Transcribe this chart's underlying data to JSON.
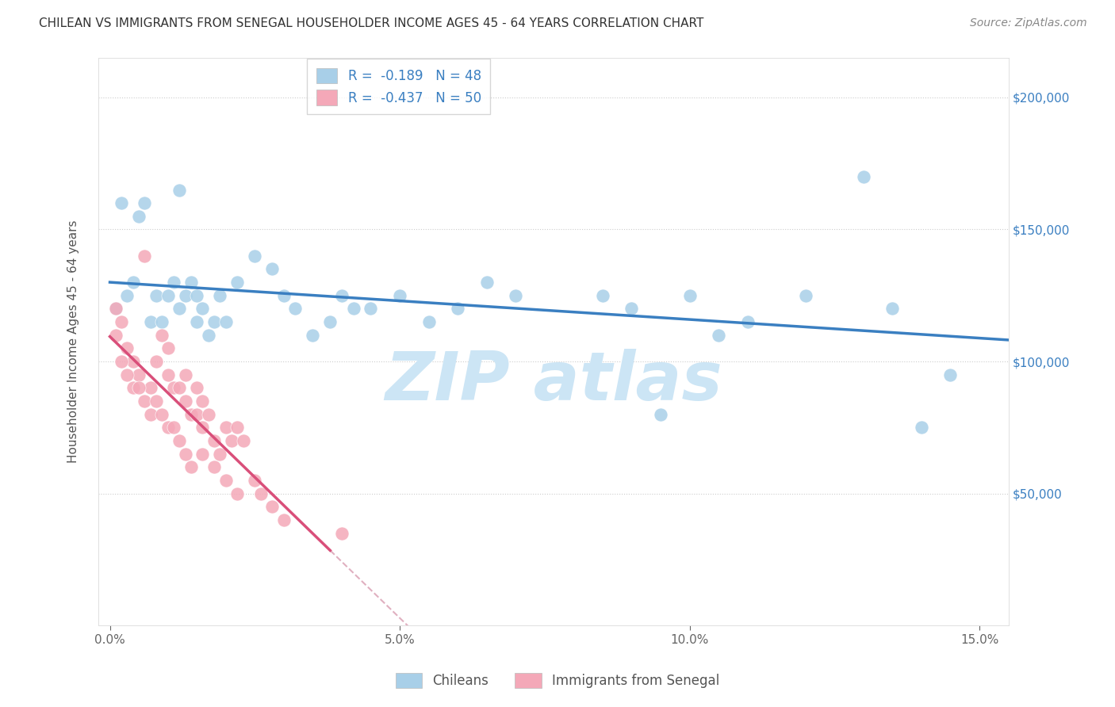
{
  "title": "CHILEAN VS IMMIGRANTS FROM SENEGAL HOUSEHOLDER INCOME AGES 45 - 64 YEARS CORRELATION CHART",
  "source": "Source: ZipAtlas.com",
  "ylabel": "Householder Income Ages 45 - 64 years",
  "xlim": [
    -0.002,
    0.155
  ],
  "ylim": [
    0,
    215000
  ],
  "xtick_positions": [
    0.0,
    0.05,
    0.1,
    0.15
  ],
  "xticklabels": [
    "0.0%",
    "5.0%",
    "10.0%",
    "15.0%"
  ],
  "ytick_positions": [
    50000,
    100000,
    150000,
    200000
  ],
  "ytick_labels": [
    "$50,000",
    "$100,000",
    "$150,000",
    "$200,000"
  ],
  "chilean_R": -0.189,
  "chilean_N": 48,
  "senegal_R": -0.437,
  "senegal_N": 50,
  "chilean_color": "#a8cfe8",
  "senegal_color": "#f4a8b8",
  "chilean_line_color": "#3a7fc1",
  "senegal_line_color": "#d94f7a",
  "senegal_dash_color": "#e0b0c0",
  "legend_label_chilean": "Chileans",
  "legend_label_senegal": "Immigrants from Senegal",
  "background_color": "#ffffff",
  "grid_color": "#cccccc",
  "watermark_color": "#cce5f5",
  "title_color": "#333333",
  "source_color": "#888888",
  "axis_label_color": "#555555",
  "yaxis_tick_color": "#3a7fc1",
  "legend_text_color": "#3a7fc1",
  "chilean_scatter_x": [
    0.001,
    0.002,
    0.003,
    0.004,
    0.005,
    0.006,
    0.007,
    0.008,
    0.009,
    0.01,
    0.011,
    0.012,
    0.012,
    0.013,
    0.014,
    0.015,
    0.015,
    0.016,
    0.017,
    0.018,
    0.019,
    0.02,
    0.022,
    0.025,
    0.028,
    0.03,
    0.032,
    0.035,
    0.038,
    0.04,
    0.042,
    0.045,
    0.05,
    0.055,
    0.06,
    0.065,
    0.07,
    0.085,
    0.09,
    0.095,
    0.1,
    0.105,
    0.11,
    0.12,
    0.13,
    0.135,
    0.14,
    0.145
  ],
  "chilean_scatter_y": [
    120000,
    160000,
    125000,
    130000,
    155000,
    160000,
    115000,
    125000,
    115000,
    125000,
    130000,
    120000,
    165000,
    125000,
    130000,
    125000,
    115000,
    120000,
    110000,
    115000,
    125000,
    115000,
    130000,
    140000,
    135000,
    125000,
    120000,
    110000,
    115000,
    125000,
    120000,
    120000,
    125000,
    115000,
    120000,
    130000,
    125000,
    125000,
    120000,
    80000,
    125000,
    110000,
    115000,
    125000,
    170000,
    120000,
    75000,
    95000
  ],
  "senegal_scatter_x": [
    0.001,
    0.002,
    0.003,
    0.004,
    0.005,
    0.006,
    0.007,
    0.008,
    0.009,
    0.01,
    0.01,
    0.011,
    0.012,
    0.013,
    0.013,
    0.014,
    0.015,
    0.015,
    0.016,
    0.016,
    0.017,
    0.018,
    0.019,
    0.02,
    0.021,
    0.022,
    0.023,
    0.025,
    0.026,
    0.028,
    0.001,
    0.002,
    0.003,
    0.004,
    0.005,
    0.006,
    0.007,
    0.008,
    0.009,
    0.01,
    0.011,
    0.012,
    0.013,
    0.014,
    0.016,
    0.018,
    0.02,
    0.022,
    0.03,
    0.04
  ],
  "senegal_scatter_y": [
    110000,
    115000,
    105000,
    100000,
    95000,
    140000,
    90000,
    100000,
    110000,
    105000,
    95000,
    90000,
    90000,
    85000,
    95000,
    80000,
    90000,
    80000,
    75000,
    85000,
    80000,
    70000,
    65000,
    75000,
    70000,
    75000,
    70000,
    55000,
    50000,
    45000,
    120000,
    100000,
    95000,
    90000,
    90000,
    85000,
    80000,
    85000,
    80000,
    75000,
    75000,
    70000,
    65000,
    60000,
    65000,
    60000,
    55000,
    50000,
    40000,
    35000
  ]
}
